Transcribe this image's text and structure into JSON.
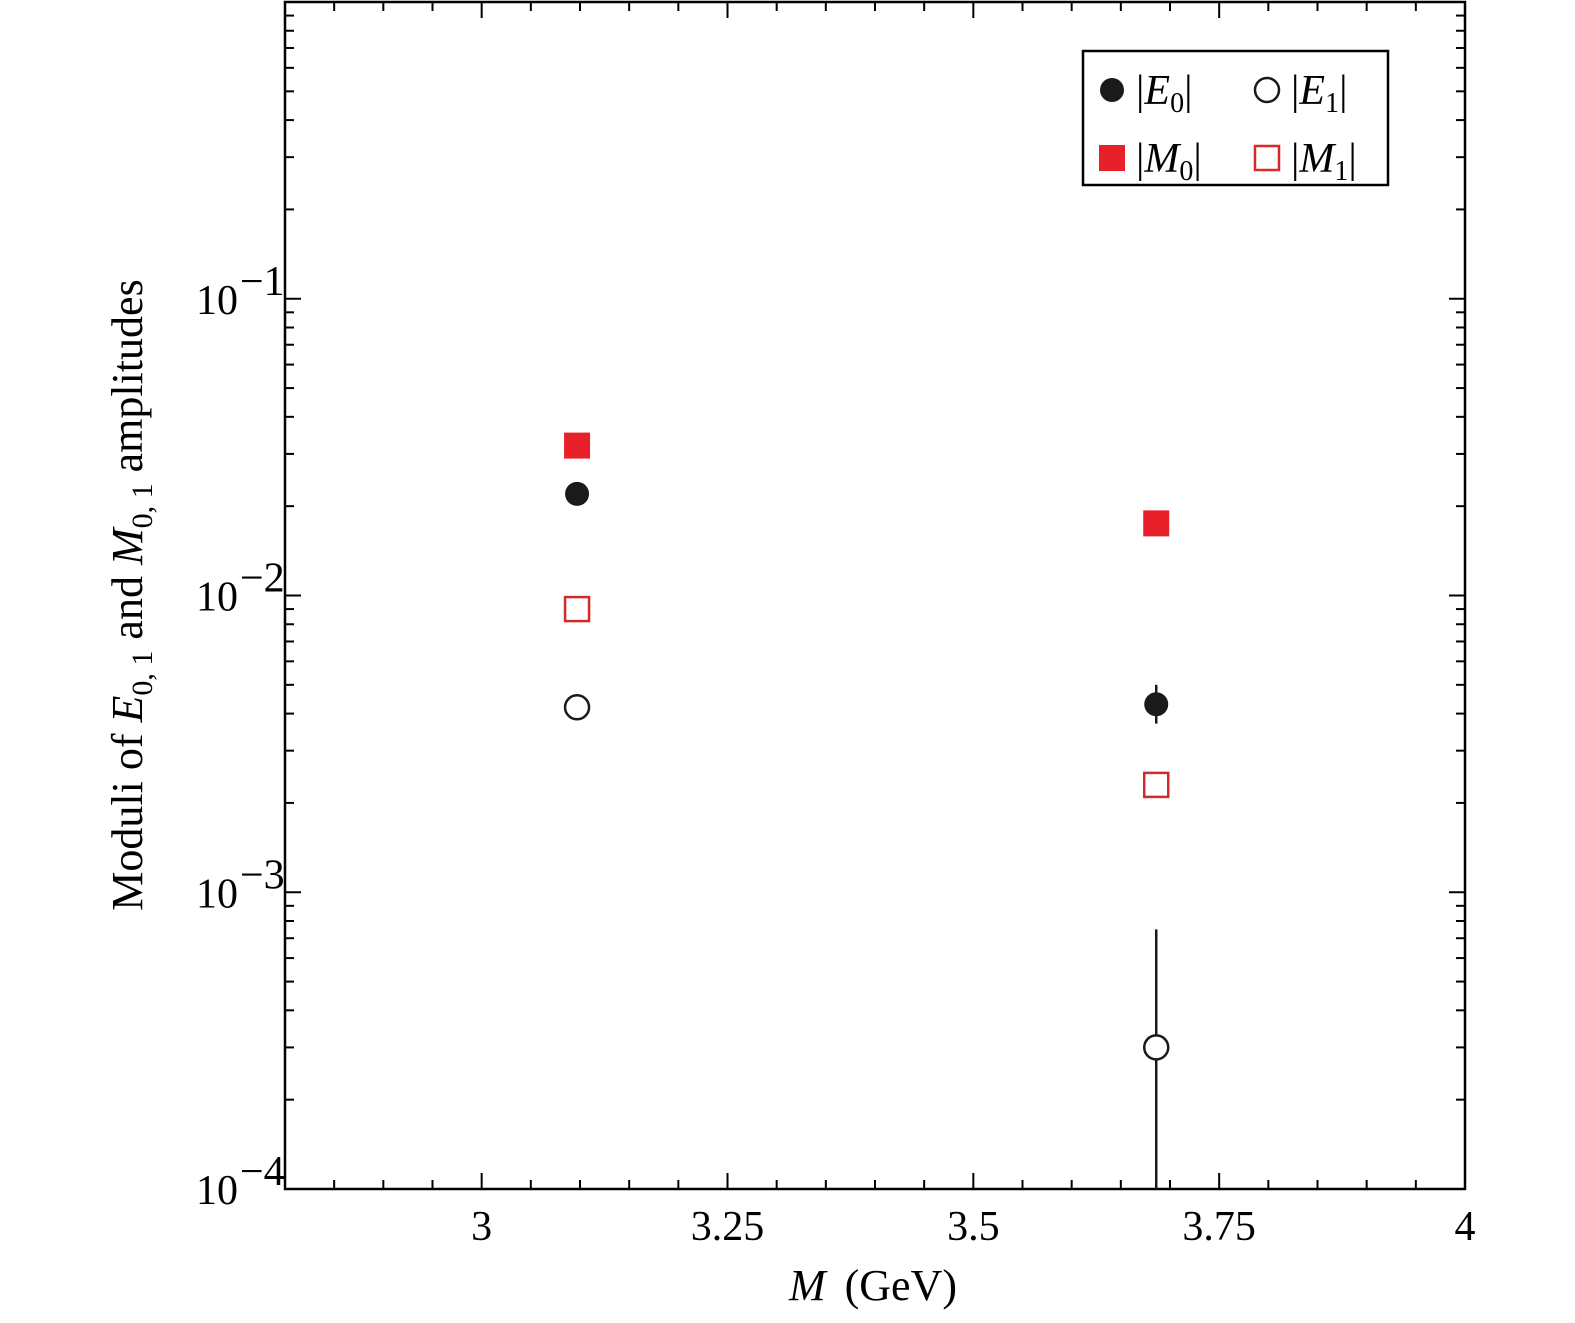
{
  "chart_data": {
    "type": "scatter",
    "xlabel_var": "M",
    "xlabel_unit": "(GeV)",
    "ylabel_parts": [
      "Moduli of ",
      "E",
      "0, 1",
      " and ",
      "M",
      "0, 1",
      " amplitudes"
    ],
    "xlim": [
      2.8,
      4.0
    ],
    "ylim": [
      0.0001,
      1.0
    ],
    "yscale": "log",
    "xticks": [
      3.0,
      3.25,
      3.5,
      3.75,
      4.0
    ],
    "xtick_labels": [
      "3",
      "3.25",
      "3.5",
      "3.75",
      "4"
    ],
    "yticks": [
      0.0001,
      0.001,
      0.01,
      0.1
    ],
    "ytick_base": [
      "10",
      "10",
      "10",
      "10"
    ],
    "ytick_exp": [
      "−4",
      "−3",
      "−2",
      "−1"
    ],
    "legend_position": "top-right",
    "series": [
      {
        "name_var": "E",
        "name_sub": "0",
        "marker": "filled-circle",
        "color": "#1a1a1a",
        "x": [
          3.097,
          3.686
        ],
        "y": [
          0.022,
          0.0043
        ],
        "err_low": [
          null,
          0.0037
        ],
        "err_high": [
          null,
          0.005
        ]
      },
      {
        "name_var": "E",
        "name_sub": "1",
        "marker": "open-circle",
        "color": "#1a1a1a",
        "x": [
          3.097,
          3.686
        ],
        "y": [
          0.0042,
          0.0003
        ],
        "err_low": [
          null,
          0.0001
        ],
        "err_high": [
          null,
          0.00075
        ]
      },
      {
        "name_var": "M",
        "name_sub": "0",
        "marker": "filled-square",
        "color": "#e8202a",
        "x": [
          3.097,
          3.686
        ],
        "y": [
          0.032,
          0.0175
        ],
        "err_low": [
          null,
          null
        ],
        "err_high": [
          null,
          null
        ]
      },
      {
        "name_var": "M",
        "name_sub": "1",
        "marker": "open-square",
        "color": "#d42a2a",
        "x": [
          3.097,
          3.686
        ],
        "y": [
          0.009,
          0.0023
        ],
        "err_low": [
          null,
          null
        ],
        "err_high": [
          null,
          null
        ]
      }
    ]
  }
}
